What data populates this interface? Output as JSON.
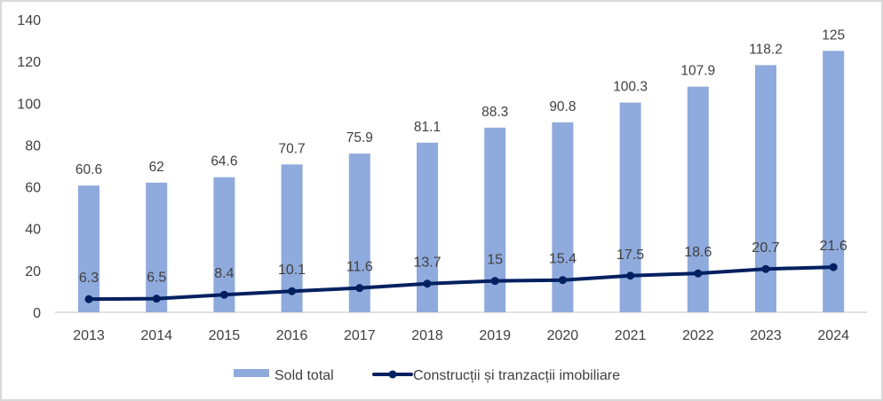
{
  "chart_data": {
    "type": "bar+line",
    "categories": [
      "2013",
      "2014",
      "2015",
      "2016",
      "2017",
      "2018",
      "2019",
      "2020",
      "2021",
      "2022",
      "2023",
      "2024"
    ],
    "series": [
      {
        "name": "Sold total",
        "type": "bar",
        "color": "#8FAADC",
        "values": [
          60.6,
          62,
          64.6,
          70.7,
          75.9,
          81.1,
          88.3,
          90.8,
          100.3,
          107.9,
          118.2,
          125
        ],
        "labels": [
          "60.6",
          "62",
          "64.6",
          "70.7",
          "75.9",
          "81.1",
          "88.3",
          "90.8",
          "100.3",
          "107.9",
          "118.2",
          "125"
        ]
      },
      {
        "name": "Construcții și tranzacții imobiliare",
        "type": "line",
        "color": "#002060",
        "values": [
          6.3,
          6.5,
          8.4,
          10.1,
          11.6,
          13.7,
          15,
          15.4,
          17.5,
          18.6,
          20.7,
          21.6
        ],
        "labels": [
          "6.3",
          "6.5",
          "8.4",
          "10.1",
          "11.6",
          "13.7",
          "15",
          "15.4",
          "17.5",
          "18.6",
          "20.7",
          "21.6"
        ]
      }
    ],
    "ylim": [
      0,
      140
    ],
    "yticks": [
      "0",
      "20",
      "40",
      "60",
      "80",
      "100",
      "120",
      "140"
    ],
    "grid": false,
    "legend": "bottom",
    "title": "",
    "xlabel": "",
    "ylabel": ""
  }
}
